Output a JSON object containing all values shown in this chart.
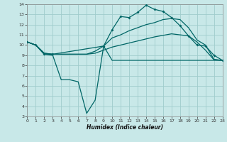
{
  "xlabel": "Humidex (Indice chaleur)",
  "bg_color": "#c8e8e8",
  "grid_color": "#a0cccc",
  "line_color": "#006666",
  "xlim": [
    0,
    23
  ],
  "ylim": [
    3,
    14
  ],
  "xticks": [
    0,
    1,
    2,
    3,
    4,
    5,
    6,
    7,
    8,
    9,
    10,
    11,
    12,
    13,
    14,
    15,
    16,
    17,
    18,
    19,
    20,
    21,
    22,
    23
  ],
  "yticks": [
    3,
    4,
    5,
    6,
    7,
    8,
    9,
    10,
    11,
    12,
    13,
    14
  ],
  "jagged_x": [
    0,
    1,
    2,
    3,
    4,
    5,
    6,
    7,
    8,
    9,
    10,
    11,
    12,
    13,
    14,
    15,
    16,
    17,
    18,
    19,
    20,
    21,
    22,
    23
  ],
  "jagged_y": [
    10.3,
    10.0,
    9.1,
    9.0,
    6.6,
    6.6,
    6.4,
    3.3,
    4.6,
    9.9,
    8.5,
    8.5,
    8.5,
    8.5,
    8.5,
    8.5,
    8.5,
    8.5,
    8.5,
    8.5,
    8.5,
    8.5,
    8.5,
    8.5
  ],
  "smooth1_x": [
    0,
    1,
    2,
    3,
    4,
    5,
    6,
    7,
    8,
    9,
    10,
    11,
    12,
    13,
    14,
    15,
    16,
    17,
    18,
    19,
    20,
    21,
    22,
    23
  ],
  "smooth1_y": [
    10.3,
    10.0,
    9.2,
    9.1,
    9.1,
    9.1,
    9.1,
    9.1,
    9.2,
    9.5,
    9.8,
    10.0,
    10.2,
    10.4,
    10.6,
    10.8,
    10.95,
    11.1,
    11.0,
    10.9,
    10.3,
    9.5,
    8.55,
    8.5
  ],
  "smooth2_x": [
    0,
    1,
    2,
    3,
    4,
    5,
    6,
    7,
    8,
    9,
    10,
    11,
    12,
    13,
    14,
    15,
    16,
    17,
    18,
    19,
    20,
    21,
    22,
    23
  ],
  "smooth2_y": [
    10.3,
    10.0,
    9.2,
    9.1,
    9.1,
    9.1,
    9.1,
    9.1,
    9.4,
    9.9,
    10.7,
    11.0,
    11.4,
    11.7,
    12.0,
    12.2,
    12.5,
    12.6,
    12.5,
    11.7,
    10.5,
    10.0,
    8.6,
    8.5
  ],
  "marker_x": [
    0,
    1,
    2,
    3,
    9,
    10,
    11,
    12,
    13,
    14,
    15,
    16,
    17,
    18,
    19,
    20,
    21,
    22,
    23
  ],
  "marker_y": [
    10.3,
    10.0,
    9.1,
    9.1,
    9.9,
    11.5,
    12.8,
    12.7,
    13.2,
    13.9,
    13.5,
    13.3,
    12.7,
    11.9,
    10.9,
    10.0,
    9.9,
    9.0,
    8.5
  ]
}
